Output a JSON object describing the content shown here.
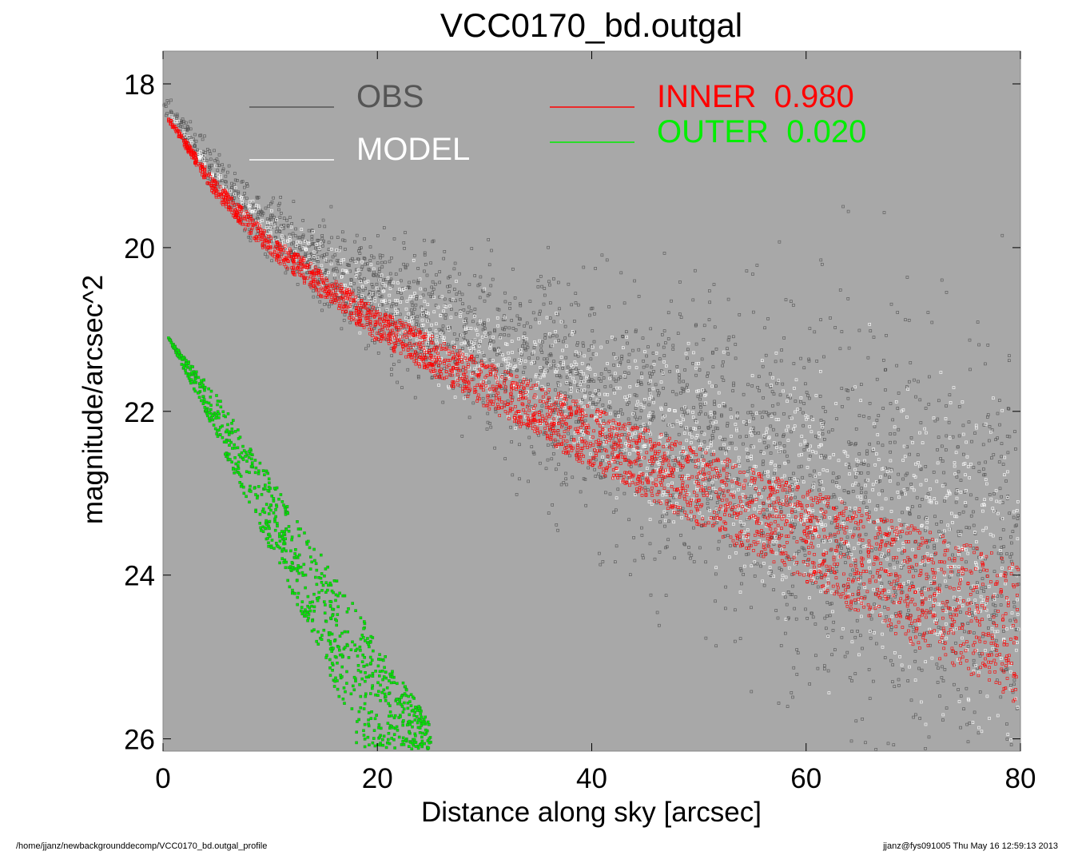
{
  "chart_data": {
    "type": "scatter",
    "title": "VCC0170_bd.outgal",
    "xlabel": "Distance along sky [arcsec]",
    "ylabel": "magnitude/arcsec^2",
    "xlim": [
      0,
      80
    ],
    "ylim": [
      26.15,
      17.6
    ],
    "y_inverted": true,
    "x_ticks": [
      0,
      20,
      40,
      60,
      80
    ],
    "x_tick_labels": [
      "0",
      "20",
      "40",
      "60",
      "80"
    ],
    "y_ticks": [
      18,
      20,
      22,
      24,
      26
    ],
    "y_tick_labels": [
      "18",
      "20",
      "22",
      "24",
      "26"
    ],
    "grid": false,
    "plot_background": "#a8a8a8",
    "legend_placement": "top-center",
    "legend": [
      {
        "name": "OBS",
        "color": "#555555"
      },
      {
        "name": "MODEL",
        "color": "#ffffff"
      },
      {
        "name": "INNER  0.980",
        "color": "#ff0000"
      },
      {
        "name": "OUTER  0.020",
        "color": "#00ee00"
      }
    ],
    "series": [
      {
        "name": "OBS",
        "color": "#555555",
        "description_points": [
          {
            "x": 0.5,
            "y": 18.3
          },
          {
            "x": 5,
            "y": 19.1
          },
          {
            "x": 10,
            "y": 19.75
          },
          {
            "x": 20,
            "y": 20.6
          },
          {
            "x": 30,
            "y": 21.25
          },
          {
            "x": 40,
            "y": 21.85
          },
          {
            "x": 50,
            "y": 22.45
          },
          {
            "x": 60,
            "y": 23.0
          },
          {
            "x": 70,
            "y": 23.55
          },
          {
            "x": 80,
            "y": 24.1
          }
        ]
      },
      {
        "name": "MODEL",
        "color": "#ffffff",
        "description_points": [
          {
            "x": 0.5,
            "y": 18.35
          },
          {
            "x": 5,
            "y": 19.15
          },
          {
            "x": 10,
            "y": 19.8
          },
          {
            "x": 20,
            "y": 20.65
          },
          {
            "x": 30,
            "y": 21.3
          },
          {
            "x": 40,
            "y": 21.9
          },
          {
            "x": 50,
            "y": 22.5
          },
          {
            "x": 60,
            "y": 23.05
          },
          {
            "x": 70,
            "y": 23.6
          },
          {
            "x": 80,
            "y": 24.15
          }
        ]
      },
      {
        "name": "INNER",
        "color": "#ff0000",
        "fraction": 0.98,
        "upper_edge": [
          {
            "x": 0.5,
            "y": 18.4
          },
          {
            "x": 5,
            "y": 19.2
          },
          {
            "x": 10,
            "y": 19.85
          },
          {
            "x": 20,
            "y": 20.75
          },
          {
            "x": 30,
            "y": 21.4
          },
          {
            "x": 40,
            "y": 21.95
          },
          {
            "x": 50,
            "y": 22.45
          },
          {
            "x": 60,
            "y": 22.95
          },
          {
            "x": 70,
            "y": 23.4
          },
          {
            "x": 80,
            "y": 23.85
          }
        ],
        "lower_edge": [
          {
            "x": 0.5,
            "y": 18.45
          },
          {
            "x": 5,
            "y": 19.4
          },
          {
            "x": 10,
            "y": 20.1
          },
          {
            "x": 20,
            "y": 21.15
          },
          {
            "x": 30,
            "y": 21.95
          },
          {
            "x": 40,
            "y": 22.7
          },
          {
            "x": 50,
            "y": 23.4
          },
          {
            "x": 60,
            "y": 24.1
          },
          {
            "x": 70,
            "y": 24.85
          },
          {
            "x": 80,
            "y": 25.6
          }
        ]
      },
      {
        "name": "OUTER",
        "color": "#00ee00",
        "fraction": 0.02,
        "upper_edge": [
          {
            "x": 0.5,
            "y": 21.1
          },
          {
            "x": 5,
            "y": 21.8
          },
          {
            "x": 10,
            "y": 22.8
          },
          {
            "x": 15,
            "y": 23.8
          },
          {
            "x": 20,
            "y": 24.8
          },
          {
            "x": 25,
            "y": 25.8
          }
        ],
        "lower_edge": [
          {
            "x": 0.5,
            "y": 21.1
          },
          {
            "x": 5,
            "y": 22.3
          },
          {
            "x": 10,
            "y": 23.7
          },
          {
            "x": 15,
            "y": 25.0
          },
          {
            "x": 18,
            "y": 26.1
          }
        ]
      }
    ]
  },
  "footer": {
    "path": "/home/jjanz/newbackgrounddecomp/VCC0170_bd.outgal_profile",
    "stamp": "jjanz@fys091005  Thu May 16 12:59:13 2013"
  }
}
